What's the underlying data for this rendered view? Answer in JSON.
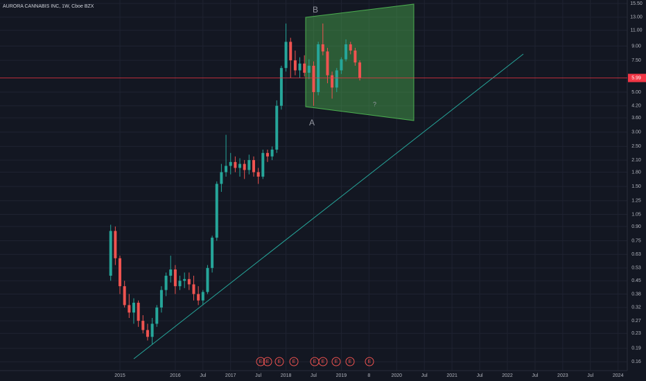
{
  "chart_data": {
    "type": "candlestick",
    "title": "AURORA CANNABIS INC, 1W, Cboe BZX",
    "log_scale": true,
    "grid": true,
    "up_color": "#26a69a",
    "down_color": "#ef5350",
    "last_price_color": "#f23645",
    "x": [
      "2014-11",
      "2014-12",
      "2015-01",
      "2015-02",
      "2015-03",
      "2015-04",
      "2015-05",
      "2015-06",
      "2015-07",
      "2015-08",
      "2015-09",
      "2015-10",
      "2015-11",
      "2015-12",
      "2016-01",
      "2016-02",
      "2016-03",
      "2016-04",
      "2016-05",
      "2016-06",
      "2016-07",
      "2016-08",
      "2016-09",
      "2016-10",
      "2016-11",
      "2016-12",
      "2017-01",
      "2017-02",
      "2017-03",
      "2017-04",
      "2017-05",
      "2017-06",
      "2017-07",
      "2017-08",
      "2017-09",
      "2017-10",
      "2017-11",
      "2017-12",
      "2018-01",
      "2018-02",
      "2018-03",
      "2018-04",
      "2018-05",
      "2018-06",
      "2018-07",
      "2018-08",
      "2018-09",
      "2018-10",
      "2018-11",
      "2018-12",
      "2019-01",
      "2019-02",
      "2019-03",
      "2019-04",
      "2019-05"
    ],
    "open": [
      0.48,
      0.85,
      0.6,
      0.42,
      0.33,
      0.3,
      0.34,
      0.27,
      0.24,
      0.22,
      0.26,
      0.32,
      0.4,
      0.48,
      0.52,
      0.42,
      0.45,
      0.46,
      0.43,
      0.38,
      0.35,
      0.39,
      0.53,
      0.78,
      1.55,
      1.8,
      1.95,
      2.05,
      1.9,
      2.0,
      1.85,
      2.1,
      1.8,
      1.7,
      2.3,
      2.2,
      2.4,
      4.2,
      6.8,
      9.5,
      7.5,
      6.6,
      7.2,
      6.4,
      7.0,
      5.0,
      9.2,
      8.4,
      6.2,
      5.3,
      6.6,
      7.6,
      9.2,
      8.5,
      7.3
    ],
    "high": [
      0.92,
      0.9,
      0.62,
      0.45,
      0.38,
      0.36,
      0.35,
      0.29,
      0.26,
      0.28,
      0.33,
      0.42,
      0.5,
      0.62,
      0.55,
      0.48,
      0.5,
      0.5,
      0.48,
      0.42,
      0.4,
      0.55,
      0.8,
      1.6,
      2.0,
      2.9,
      2.3,
      2.2,
      2.15,
      2.1,
      2.25,
      2.2,
      1.9,
      2.4,
      2.4,
      2.5,
      4.5,
      7.0,
      12.0,
      10.0,
      8.5,
      7.8,
      8.0,
      7.6,
      7.4,
      9.5,
      12.0,
      8.8,
      6.5,
      6.8,
      7.8,
      9.8,
      9.5,
      8.8,
      7.5
    ],
    "low": [
      0.45,
      0.55,
      0.38,
      0.32,
      0.28,
      0.26,
      0.25,
      0.23,
      0.21,
      0.2,
      0.25,
      0.3,
      0.37,
      0.44,
      0.38,
      0.4,
      0.41,
      0.4,
      0.35,
      0.33,
      0.33,
      0.38,
      0.5,
      0.75,
      1.4,
      1.7,
      1.75,
      1.8,
      1.7,
      1.65,
      1.75,
      1.7,
      1.55,
      1.65,
      2.05,
      2.1,
      2.3,
      4.0,
      6.5,
      6.0,
      6.2,
      6.0,
      6.1,
      5.9,
      4.2,
      4.8,
      8.0,
      5.6,
      4.6,
      5.0,
      6.3,
      7.4,
      8.1,
      7.0,
      5.8
    ],
    "close": [
      0.85,
      0.6,
      0.42,
      0.33,
      0.3,
      0.34,
      0.27,
      0.24,
      0.22,
      0.26,
      0.32,
      0.4,
      0.48,
      0.52,
      0.42,
      0.45,
      0.46,
      0.43,
      0.38,
      0.35,
      0.39,
      0.53,
      0.78,
      1.55,
      1.8,
      1.95,
      2.05,
      1.9,
      2.0,
      1.85,
      2.1,
      1.8,
      1.7,
      2.3,
      2.2,
      2.4,
      4.2,
      6.8,
      9.5,
      7.5,
      6.6,
      7.2,
      6.4,
      7.0,
      5.0,
      9.2,
      8.4,
      6.2,
      5.3,
      6.6,
      7.6,
      9.2,
      8.5,
      7.3,
      5.99
    ],
    "xlim": [
      "2012-11",
      "2024-03"
    ],
    "xticks": [
      {
        "value": "2015-01",
        "label": "2015"
      },
      {
        "value": "2016-01",
        "label": "2016"
      },
      {
        "value": "2016-07",
        "label": "Jul"
      },
      {
        "value": "2017-01",
        "label": "2017"
      },
      {
        "value": "2017-07",
        "label": "Jul"
      },
      {
        "value": "2018-01",
        "label": "2018"
      },
      {
        "value": "2018-07",
        "label": "Jul"
      },
      {
        "value": "2019-01",
        "label": "2019"
      },
      {
        "value": "2019-07",
        "label": "8"
      },
      {
        "value": "2020-01",
        "label": "2020"
      },
      {
        "value": "2020-07",
        "label": "Jul"
      },
      {
        "value": "2021-01",
        "label": "2021"
      },
      {
        "value": "2021-07",
        "label": "Jul"
      },
      {
        "value": "2022-01",
        "label": "2022"
      },
      {
        "value": "2022-07",
        "label": "Jul"
      },
      {
        "value": "2023-01",
        "label": "2023"
      },
      {
        "value": "2023-07",
        "label": "Jul"
      },
      {
        "value": "2024-01",
        "label": "2024"
      }
    ],
    "ylim": [
      0.143,
      16.2
    ],
    "yticks": [
      0.16,
      0.19,
      0.23,
      0.27,
      0.32,
      0.38,
      0.45,
      0.53,
      0.63,
      0.75,
      {
        "value": 0.9,
        "label": "0.90"
      },
      1.05,
      1.25,
      {
        "value": 1.5,
        "label": "1.50"
      },
      {
        "value": 1.8,
        "label": "1.80"
      },
      {
        "value": 2.1,
        "label": "2.10"
      },
      {
        "value": 2.5,
        "label": "2.50"
      },
      {
        "value": 3,
        "label": "3.00"
      },
      {
        "value": 3.6,
        "label": "3.60"
      },
      {
        "value": 4.2,
        "label": "4.20"
      },
      {
        "value": 5,
        "label": "5.00"
      },
      {
        "value": 7.5,
        "label": "7.50"
      },
      {
        "value": 9,
        "label": "9.00"
      },
      {
        "value": 11,
        "label": "11.00"
      },
      {
        "value": 13,
        "label": "13.00"
      },
      {
        "value": 15.5,
        "label": "15.50"
      }
    ],
    "annotations": [
      "A",
      "B",
      "?"
    ],
    "earnings_markers": [
      "E",
      "E",
      "E",
      "E",
      "E",
      "E",
      "E",
      "E",
      "E"
    ]
  }
}
